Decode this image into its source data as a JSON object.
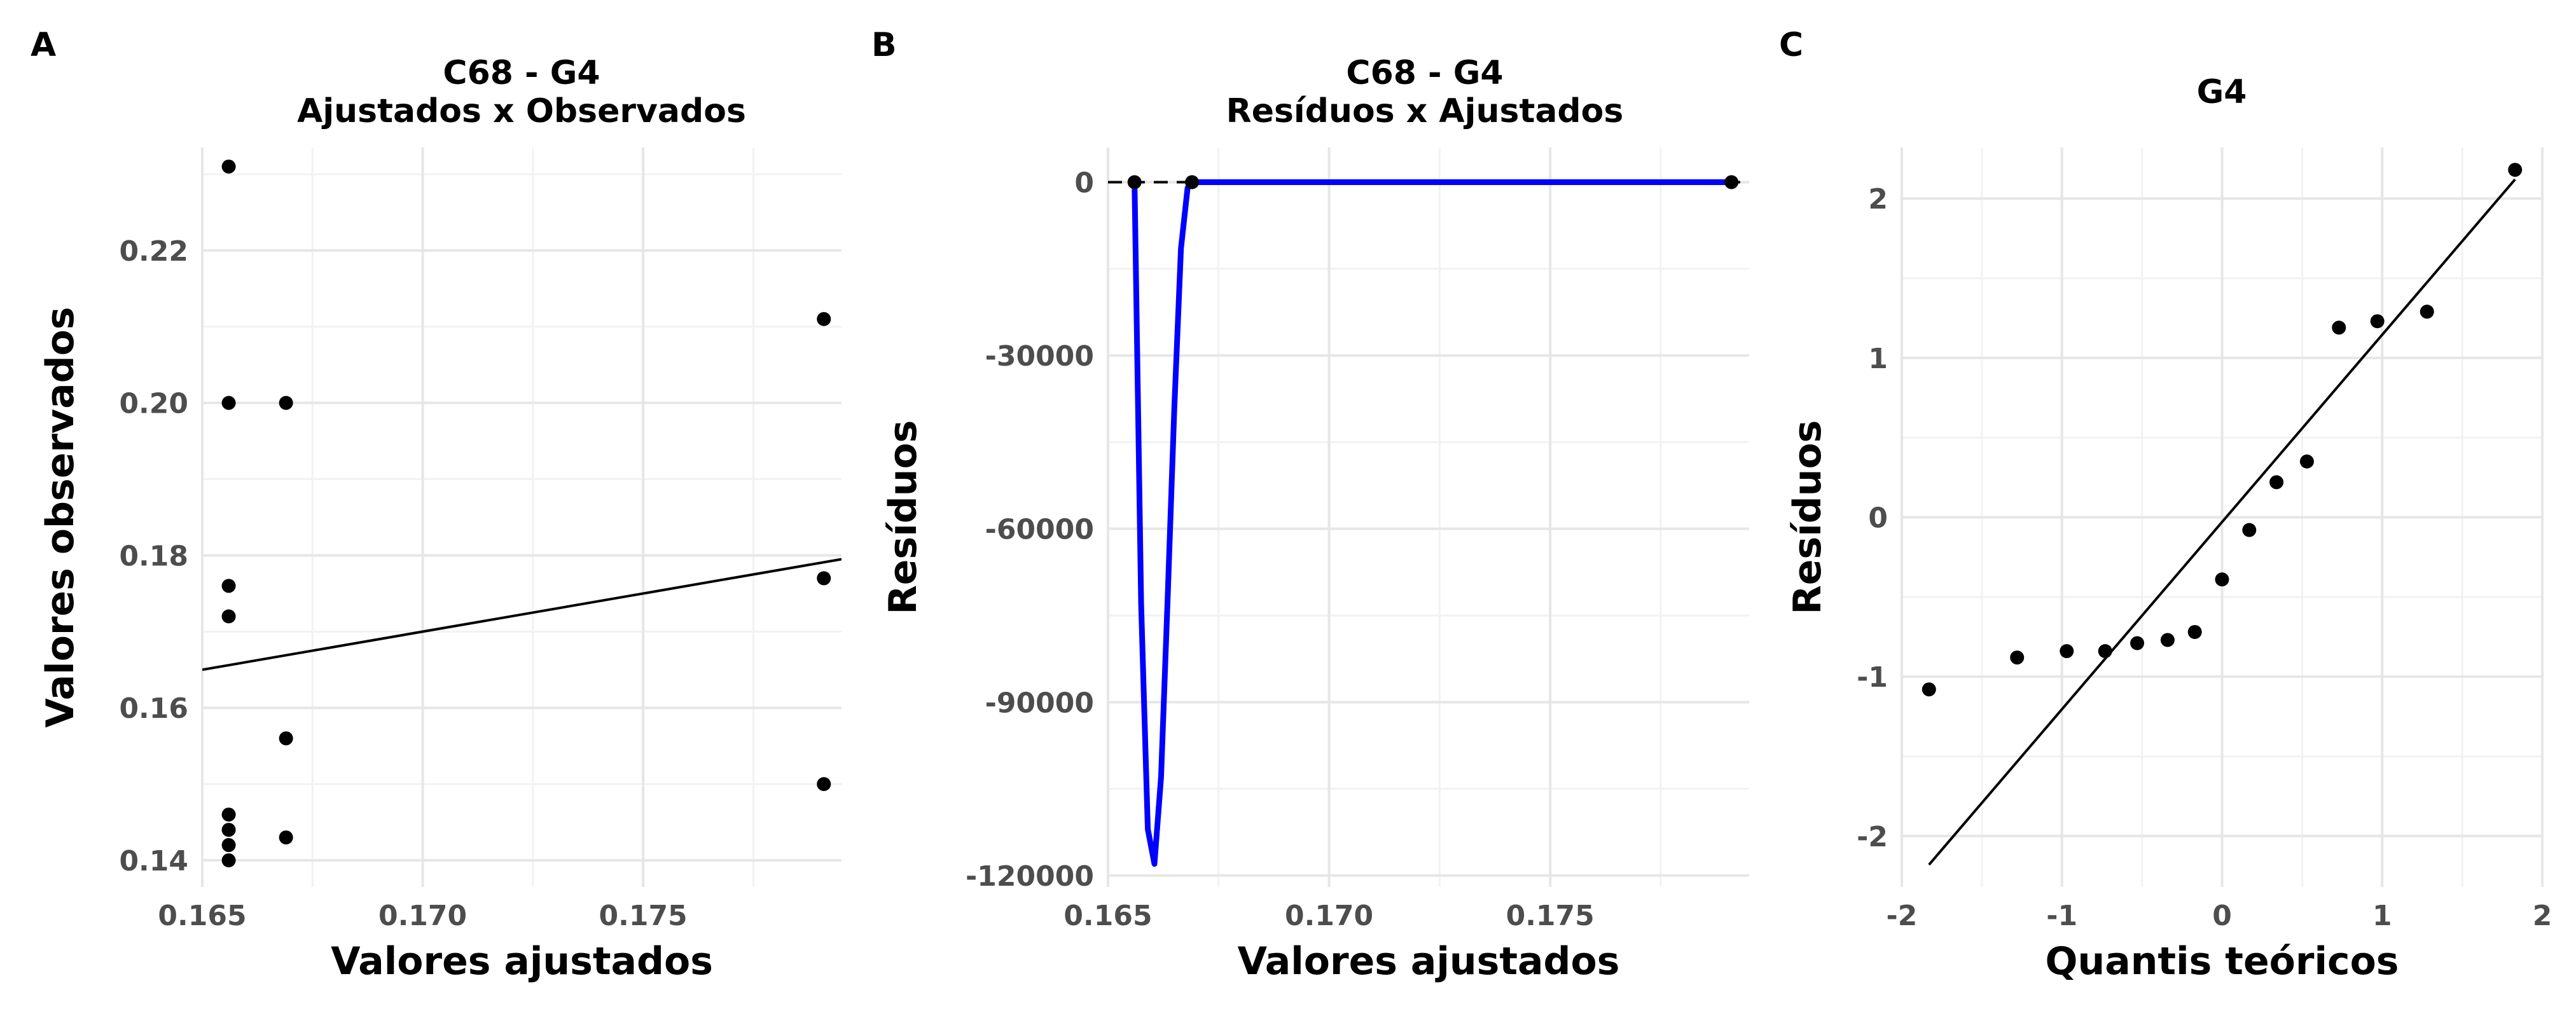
{
  "chart_data": [
    {
      "panel": "A",
      "type": "scatter",
      "title": "C68 - G4",
      "subtitle": "Ajustados x Observados",
      "xlabel": "Valores ajustados",
      "ylabel": "Valores observados",
      "xlim": [
        0.165,
        0.1795
      ],
      "ylim": [
        0.1365,
        0.2335
      ],
      "x_ticks": [
        0.165,
        0.17,
        0.175
      ],
      "x_tick_labels": [
        "0.165",
        "0.170",
        "0.175"
      ],
      "y_ticks": [
        0.14,
        0.16,
        0.18,
        0.2,
        0.22
      ],
      "y_tick_labels": [
        "0.14",
        "0.16",
        "0.18",
        "0.20",
        "0.22"
      ],
      "points": [
        {
          "x": 0.1656,
          "y": 0.231
        },
        {
          "x": 0.1656,
          "y": 0.2
        },
        {
          "x": 0.1656,
          "y": 0.176
        },
        {
          "x": 0.1656,
          "y": 0.172
        },
        {
          "x": 0.1656,
          "y": 0.146
        },
        {
          "x": 0.1656,
          "y": 0.144
        },
        {
          "x": 0.1656,
          "y": 0.142
        },
        {
          "x": 0.1656,
          "y": 0.14
        },
        {
          "x": 0.1669,
          "y": 0.2
        },
        {
          "x": 0.1669,
          "y": 0.156
        },
        {
          "x": 0.1669,
          "y": 0.143
        },
        {
          "x": 0.1791,
          "y": 0.211
        },
        {
          "x": 0.1791,
          "y": 0.177
        },
        {
          "x": 0.1791,
          "y": 0.15
        }
      ],
      "line": {
        "x": [
          0.165,
          0.1795
        ],
        "y": [
          0.165,
          0.1795
        ],
        "color": "#000000"
      },
      "grid": true
    },
    {
      "panel": "B",
      "type": "line",
      "title": "C68 - G4",
      "subtitle": "Resíduos x Ajustados",
      "xlabel": "Valores ajustados",
      "ylabel": "Resíduos",
      "xlim": [
        0.165,
        0.1795
      ],
      "ylim": [
        -122000,
        6000
      ],
      "x_ticks": [
        0.165,
        0.17,
        0.175
      ],
      "x_tick_labels": [
        "0.165",
        "0.170",
        "0.175"
      ],
      "y_ticks": [
        0,
        -30000,
        -60000,
        -90000,
        -120000
      ],
      "y_tick_labels": [
        "0",
        "-30000",
        "-60000",
        "-90000",
        "-120000"
      ],
      "points": [
        {
          "x": 0.1656,
          "y": 0
        },
        {
          "x": 0.1669,
          "y": 0
        },
        {
          "x": 0.1791,
          "y": 0
        }
      ],
      "smooth_line": {
        "color": "#0000ff",
        "x": [
          0.1656,
          0.16575,
          0.1659,
          0.16605,
          0.1662,
          0.16635,
          0.1665,
          0.16665,
          0.1668,
          0.1669,
          0.1675,
          0.17,
          0.175,
          0.1791
        ],
        "y": [
          0,
          -73000,
          -112000,
          -118000,
          -103000,
          -72000,
          -39000,
          -11500,
          -1000,
          0,
          0,
          0,
          0,
          0
        ]
      },
      "reference_line": {
        "y": 0,
        "style": "dashed",
        "color": "#000000"
      },
      "grid": true
    },
    {
      "panel": "C",
      "type": "scatter",
      "title": "G4",
      "xlabel": "Quantis teóricos",
      "ylabel": "Resíduos",
      "xlim": [
        -2,
        2
      ],
      "ylim": [
        -2.32,
        2.32
      ],
      "x_ticks": [
        -2,
        -1,
        0,
        1,
        2
      ],
      "x_tick_labels": [
        "-2",
        "-1",
        "0",
        "1",
        "2"
      ],
      "y_ticks": [
        -2,
        -1,
        0,
        1,
        2
      ],
      "y_tick_labels": [
        "-2",
        "-1",
        "0",
        "1",
        "2"
      ],
      "points": [
        {
          "x": -1.83,
          "y": -1.08
        },
        {
          "x": -1.28,
          "y": -0.88
        },
        {
          "x": -0.97,
          "y": -0.84
        },
        {
          "x": -0.73,
          "y": -0.84
        },
        {
          "x": -0.53,
          "y": -0.79
        },
        {
          "x": -0.34,
          "y": -0.77
        },
        {
          "x": -0.17,
          "y": -0.72
        },
        {
          "x": 0.0,
          "y": -0.39
        },
        {
          "x": 0.17,
          "y": -0.08
        },
        {
          "x": 0.34,
          "y": 0.22
        },
        {
          "x": 0.53,
          "y": 0.35
        },
        {
          "x": 0.73,
          "y": 1.19
        },
        {
          "x": 0.97,
          "y": 1.23
        },
        {
          "x": 1.28,
          "y": 1.29
        },
        {
          "x": 1.83,
          "y": 2.18
        }
      ],
      "line": {
        "x": [
          -1.83,
          1.83
        ],
        "y": [
          -2.18,
          2.12
        ],
        "color": "#000000"
      },
      "grid": true
    }
  ]
}
